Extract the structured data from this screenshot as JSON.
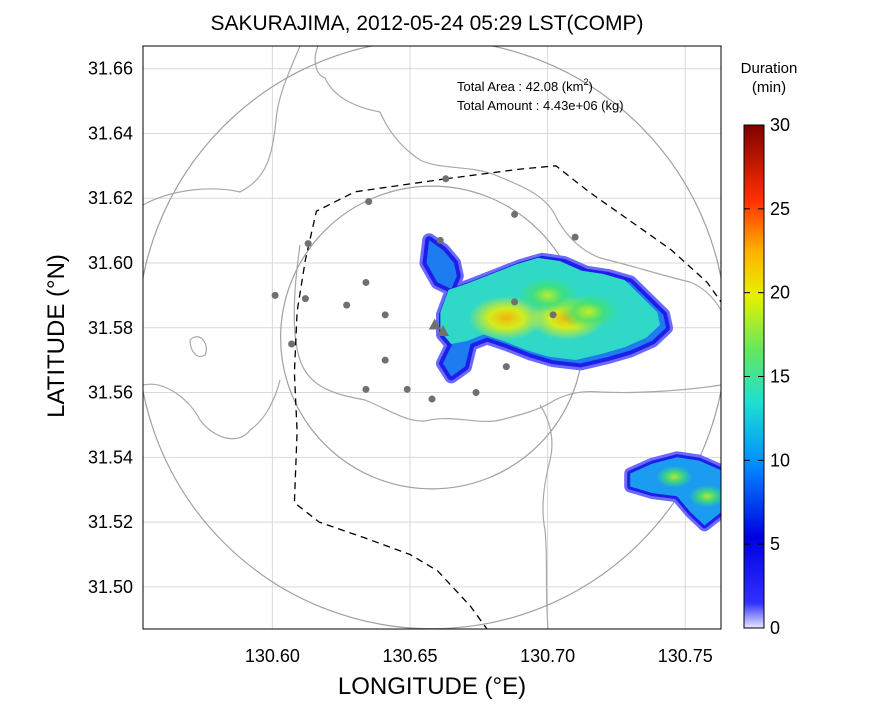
{
  "chart_data": {
    "type": "heatmap",
    "title": "SAKURAJIMA, 2012-05-24 05:29 LST(COMP)",
    "xlabel": "LONGITUDE (°E)",
    "ylabel": "LATITUDE (°N)",
    "xlim": [
      130.553,
      130.763
    ],
    "ylim": [
      31.487,
      31.667
    ],
    "xticks": [
      "130.60",
      "130.65",
      "130.70",
      "130.75"
    ],
    "yticks": [
      "31.66",
      "31.64",
      "31.62",
      "31.60",
      "31.58",
      "31.56",
      "31.54",
      "31.52",
      "31.50"
    ],
    "grid": true,
    "annotations": {
      "area_label": "Total Area   : 42.08 (km",
      "area_sup": "2",
      "area_close": ")",
      "amount_label": "Total Amount : 4.43e+06 (kg)"
    },
    "colorbar": {
      "title_line1": "Duration",
      "title_line2": "(min)",
      "min": 0,
      "max": 30,
      "ticks": [
        "30",
        "25",
        "20",
        "15",
        "10",
        "5",
        "0"
      ]
    },
    "deposit_main": {
      "west_lobe": [
        [
          130.662,
          31.604
        ],
        [
          130.666,
          31.6
        ],
        [
          130.667,
          31.596
        ],
        [
          130.665,
          31.592
        ],
        [
          130.66,
          31.594
        ],
        [
          130.656,
          31.6
        ],
        [
          130.657,
          31.607
        ]
      ],
      "body": [
        [
          130.665,
          31.591
        ],
        [
          130.672,
          31.593
        ],
        [
          130.681,
          31.596
        ],
        [
          130.69,
          31.599
        ],
        [
          130.698,
          31.601
        ],
        [
          130.706,
          31.6
        ],
        [
          130.714,
          31.597
        ],
        [
          130.722,
          31.596
        ],
        [
          130.73,
          31.594
        ],
        [
          130.736,
          31.589
        ],
        [
          130.742,
          31.584
        ],
        [
          130.743,
          31.58
        ],
        [
          130.738,
          31.576
        ],
        [
          130.73,
          31.573
        ],
        [
          130.722,
          31.571
        ],
        [
          130.712,
          31.569
        ],
        [
          130.702,
          31.57
        ],
        [
          130.694,
          31.572
        ],
        [
          130.685,
          31.575
        ],
        [
          130.678,
          31.577
        ],
        [
          130.672,
          31.575
        ],
        [
          130.666,
          31.574
        ],
        [
          130.662,
          31.578
        ],
        [
          130.662,
          31.584
        ]
      ],
      "tail": [
        [
          130.666,
          31.576
        ],
        [
          130.672,
          31.575
        ],
        [
          130.67,
          31.568
        ],
        [
          130.665,
          31.565
        ],
        [
          130.662,
          31.569
        ]
      ],
      "hotspots": [
        {
          "lon": 130.685,
          "lat": 31.583,
          "duration": 22
        },
        {
          "lon": 130.707,
          "lat": 31.583,
          "duration": 20
        },
        {
          "lon": 130.715,
          "lat": 31.585,
          "duration": 16
        },
        {
          "lon": 130.7,
          "lat": 31.59,
          "duration": 14
        }
      ]
    },
    "deposit_east": {
      "body": [
        [
          130.73,
          31.535
        ],
        [
          130.738,
          31.538
        ],
        [
          130.747,
          31.54
        ],
        [
          130.755,
          31.539
        ],
        [
          130.763,
          31.536
        ],
        [
          130.763,
          31.523
        ],
        [
          130.757,
          31.519
        ],
        [
          130.752,
          31.523
        ],
        [
          130.747,
          31.528
        ],
        [
          130.738,
          31.529
        ],
        [
          130.73,
          31.531
        ]
      ],
      "hotspots": [
        {
          "lon": 130.746,
          "lat": 31.534,
          "duration": 16
        },
        {
          "lon": 130.758,
          "lat": 31.528,
          "duration": 13
        }
      ]
    },
    "vents": [
      {
        "lon": 130.659,
        "lat": 31.581
      },
      {
        "lon": 130.662,
        "lat": 31.579
      }
    ],
    "stations": [
      {
        "lon": 130.663,
        "lat": 31.626
      },
      {
        "lon": 130.635,
        "lat": 31.619
      },
      {
        "lon": 130.613,
        "lat": 31.606
      },
      {
        "lon": 130.661,
        "lat": 31.607
      },
      {
        "lon": 130.688,
        "lat": 31.615
      },
      {
        "lon": 130.71,
        "lat": 31.608
      },
      {
        "lon": 130.601,
        "lat": 31.59
      },
      {
        "lon": 130.612,
        "lat": 31.589
      },
      {
        "lon": 130.627,
        "lat": 31.587
      },
      {
        "lon": 130.634,
        "lat": 31.594
      },
      {
        "lon": 130.641,
        "lat": 31.584
      },
      {
        "lon": 130.688,
        "lat": 31.588
      },
      {
        "lon": 130.702,
        "lat": 31.584
      },
      {
        "lon": 130.607,
        "lat": 31.575
      },
      {
        "lon": 130.641,
        "lat": 31.57
      },
      {
        "lon": 130.634,
        "lat": 31.561
      },
      {
        "lon": 130.649,
        "lat": 31.561
      },
      {
        "lon": 130.658,
        "lat": 31.558
      },
      {
        "lon": 130.674,
        "lat": 31.56
      },
      {
        "lon": 130.685,
        "lat": 31.568
      }
    ],
    "range_circles": [
      {
        "lon": 130.658,
        "lat": 31.578,
        "radius_deg": 0.107
      },
      {
        "lon": 130.658,
        "lat": 31.577,
        "radius_deg": 0.055
      }
    ],
    "boundary": [
      [
        130.663,
        31.626
      ],
      [
        130.69,
        31.629
      ],
      [
        130.703,
        31.63
      ],
      [
        130.715,
        31.622
      ],
      [
        130.73,
        31.613
      ],
      [
        130.745,
        31.604
      ],
      [
        130.758,
        31.594
      ],
      [
        130.763,
        31.588
      ]
    ],
    "boundary_west": [
      [
        130.663,
        31.626
      ],
      [
        130.63,
        31.622
      ],
      [
        130.616,
        31.616
      ],
      [
        130.612,
        31.601
      ],
      [
        130.609,
        31.585
      ],
      [
        130.608,
        31.566
      ],
      [
        130.609,
        31.548
      ],
      [
        130.608,
        31.526
      ],
      [
        130.617,
        31.52
      ],
      [
        130.634,
        31.515
      ],
      [
        130.65,
        31.51
      ],
      [
        130.66,
        31.505
      ],
      [
        130.672,
        31.494
      ],
      [
        130.678,
        31.487
      ]
    ]
  }
}
